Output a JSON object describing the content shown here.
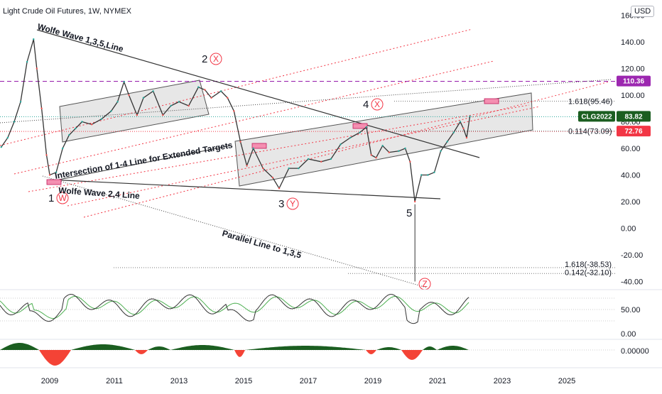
{
  "header": {
    "title": "Light Crude Oil Futures, 1W, NYMEX",
    "currency": "USD"
  },
  "colors": {
    "price": "#333333",
    "up": "#26a69a",
    "down": "#ef5350",
    "channel_fill": "#b9b9b9",
    "red_dotted": "#f23645",
    "purple_dashed": "#9c27b0",
    "wave_circle": "#f23645",
    "rsi": "#333333",
    "rsi_signal": "#4caf50",
    "hist_up": "#1b5e20",
    "hist_down": "#f44336"
  },
  "tags": {
    "level_11036": "110.36",
    "symbol": "CLG2022",
    "last": "83.82",
    "red_level": "72.76"
  },
  "fib_labels": {
    "f1618_top": "1.618(95.46)",
    "f0114": "0.114(73.09)",
    "f1618_bottom": "1.618(-38.53)",
    "f0142": "0.142(-32.10)"
  },
  "annotations": {
    "wolfe_135": "Wolfe Wave 1,3,5,Line",
    "wolfe_24": "Wolfe Wave 2,4 Line",
    "intersection": "Intersection of 1-4 Line for Extended Targets",
    "parallel": "Parallel Line to 1,3,5"
  },
  "waves": [
    {
      "num": "1",
      "letter": "W",
      "date": 2008.98,
      "price": 33
    },
    {
      "num": "2",
      "letter": "X",
      "date": 2013.65,
      "price": 111
    },
    {
      "num": "4",
      "letter": "X",
      "date": 2018.75,
      "price": 77
    },
    {
      "num": "3",
      "letter": "Y",
      "date": 2016.1,
      "price": 27
    },
    {
      "num": "5",
      "letter": "",
      "date": 2020.3,
      "price": 18
    },
    {
      "num": "",
      "letter": "Z",
      "date": 2020.6,
      "price": -42
    }
  ],
  "chart_data": {
    "type": "line",
    "title": "Light Crude Oil Futures, 1W, NYMEX",
    "xlabel": "",
    "ylabel": "",
    "x_ticks": [
      "2009",
      "2011",
      "2013",
      "2015",
      "2017",
      "2019",
      "2021",
      "2023",
      "2025"
    ],
    "y_ticks": [
      "160.00",
      "140.00",
      "120.00",
      "100.00",
      "80.00",
      "60.00",
      "40.00",
      "20.00",
      "0.00",
      "-20.00",
      "-40.00"
    ],
    "ylim": [
      -42,
      162
    ],
    "xlim": [
      2007.5,
      2026.2
    ],
    "series": [
      {
        "x": [
          2007.5,
          2007.7,
          2007.9,
          2008.1,
          2008.3,
          2008.5,
          2008.6,
          2008.75,
          2008.9,
          2009.0,
          2009.2,
          2009.4,
          2009.6,
          2009.8,
          2010.0,
          2010.3,
          2010.6,
          2010.9,
          2011.1,
          2011.3,
          2011.45,
          2011.7,
          2011.9,
          2012.2,
          2012.5,
          2012.75,
          2013.0,
          2013.3,
          2013.6,
          2013.8,
          2014.0,
          2014.3,
          2014.5,
          2014.7,
          2014.9,
          2015.1,
          2015.3,
          2015.6,
          2015.9,
          2016.1,
          2016.4,
          2016.7,
          2017.0,
          2017.4,
          2017.7,
          2018.0,
          2018.3,
          2018.6,
          2018.8,
          2018.95,
          2019.1,
          2019.3,
          2019.5,
          2019.8,
          2020.0,
          2020.15,
          2020.3,
          2020.5,
          2020.7,
          2020.9,
          2021.1,
          2021.3,
          2021.5,
          2021.7,
          2021.8,
          2021.9,
          2022.0
        ],
        "values": [
          61,
          68,
          80,
          95,
          125,
          142,
          120,
          90,
          55,
          40,
          42,
          60,
          70,
          75,
          80,
          78,
          82,
          88,
          95,
          110,
          100,
          85,
          98,
          103,
          85,
          92,
          95,
          92,
          106,
          104,
          98,
          103,
          98,
          88,
          65,
          47,
          60,
          45,
          38,
          30,
          45,
          45,
          52,
          50,
          52,
          63,
          68,
          72,
          76,
          55,
          53,
          62,
          57,
          58,
          60,
          50,
          20,
          40,
          40,
          42,
          58,
          65,
          72,
          80,
          75,
          68,
          84
        ]
      }
    ],
    "levels": [
      110.36,
      72.76,
      95.46,
      73.09,
      -38.53,
      -32.1
    ],
    "rsi_panel": {
      "y_ticks": [
        "50.00",
        "0.00"
      ]
    },
    "histogram_panel": {
      "y_ticks": [
        "0.00000"
      ]
    }
  }
}
